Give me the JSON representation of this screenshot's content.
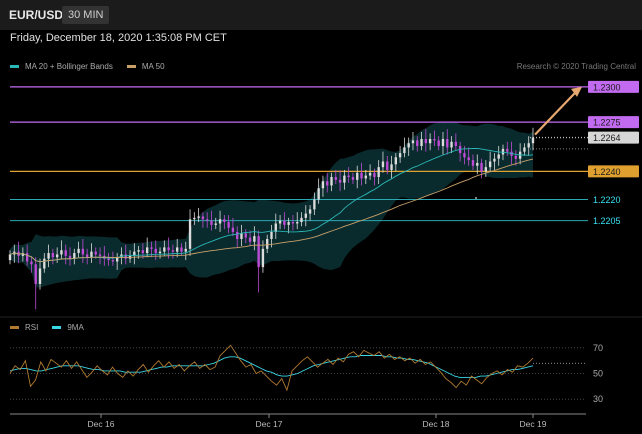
{
  "header": {
    "symbol": "EUR/USD",
    "timeframe": "30 MIN"
  },
  "date_text": "Friday, December 18, 2020 1:35:08 PM CET",
  "legend_main": {
    "item1": "MA 20 + Bollinger Bands",
    "item2": "MA 50",
    "color1": "#2ab7b7",
    "color2": "#c8a06a"
  },
  "legend_rsi": {
    "item1": "RSI",
    "item2": "9MA",
    "color1": "#b07a30",
    "color2": "#3ad7e7"
  },
  "credit": "Research © 2020 Trading Central",
  "colors": {
    "resistance": "#c36bf0",
    "pivot": "#e0a030",
    "support": "#2aa9b2",
    "candle_up": "#dcdcdc",
    "candle_down": "#c04cd8",
    "arrow": "#e6a870"
  },
  "chart_data": [
    {
      "type": "candlestick",
      "title": "EUR/USD 30 MIN",
      "x_tick_labels": [
        "Dec 16",
        "Dec 17",
        "Dec 18",
        "Dec 19"
      ],
      "ylim": [
        1.2138,
        1.2312
      ],
      "levels": [
        {
          "value": 1.23,
          "label": "1.2300",
          "kind": "resistance"
        },
        {
          "value": 1.2275,
          "label": "1.2275",
          "kind": "resistance"
        },
        {
          "value": 1.2264,
          "label": "1.2264",
          "kind": "last"
        },
        {
          "value": 1.224,
          "label": "1.2240",
          "kind": "pivot"
        },
        {
          "value": 1.222,
          "label": "1.2220",
          "kind": "support"
        },
        {
          "value": 1.2205,
          "label": "1.2205",
          "kind": "support"
        }
      ],
      "closes": [
        1.2181,
        1.2183,
        1.218,
        1.2182,
        1.2176,
        1.2174,
        1.216,
        1.2171,
        1.2178,
        1.2182,
        1.2179,
        1.2181,
        1.2184,
        1.218,
        1.2178,
        1.2182,
        1.2185,
        1.2181,
        1.2179,
        1.2183,
        1.2181,
        1.218,
        1.2178,
        1.2177,
        1.2176,
        1.2179,
        1.2181,
        1.2178,
        1.218,
        1.2183,
        1.2184,
        1.2182,
        1.2186,
        1.2185,
        1.2182,
        1.2183,
        1.2186,
        1.2184,
        1.2183,
        1.2186,
        1.2183,
        1.2185,
        1.2206,
        1.2207,
        1.2208,
        1.2206,
        1.2205,
        1.2202,
        1.2203,
        1.2206,
        1.2204,
        1.22,
        1.2197,
        1.2192,
        1.2196,
        1.2193,
        1.219,
        1.2194,
        1.2172,
        1.2185,
        1.2192,
        1.2197,
        1.2203,
        1.2205,
        1.2202,
        1.2204,
        1.2203,
        1.2204,
        1.2207,
        1.221,
        1.2213,
        1.222,
        1.2228,
        1.2233,
        1.223,
        1.2236,
        1.2234,
        1.2232,
        1.2237,
        1.2236,
        1.2234,
        1.2239,
        1.2235,
        1.2237,
        1.2239,
        1.2236,
        1.2243,
        1.2247,
        1.2241,
        1.2245,
        1.225,
        1.2253,
        1.2257,
        1.226,
        1.2262,
        1.2258,
        1.2263,
        1.226,
        1.2263,
        1.2262,
        1.2258,
        1.2263,
        1.2257,
        1.2261,
        1.2258,
        1.2253,
        1.225,
        1.2248,
        1.2244,
        1.2246,
        1.224,
        1.2243,
        1.2247,
        1.2249,
        1.2252,
        1.2256,
        1.2254,
        1.2251,
        1.2249,
        1.2254,
        1.2257,
        1.226,
        1.2264
      ],
      "series": [
        {
          "name": "MA 20 + Bollinger Bands",
          "style": "line + band"
        },
        {
          "name": "MA 50",
          "style": "line"
        }
      ]
    },
    {
      "type": "line",
      "title": "RSI",
      "ylim": [
        20,
        80
      ],
      "y_tick_labels": [
        "70",
        "50",
        "30"
      ],
      "series": [
        {
          "name": "RSI",
          "values": [
            50,
            56,
            53,
            60,
            40,
            45,
            59,
            52,
            61,
            58,
            55,
            60,
            54,
            59,
            53,
            47,
            51,
            56,
            52,
            49,
            55,
            50,
            47,
            52,
            48,
            53,
            57,
            51,
            56,
            60,
            55,
            59,
            54,
            57,
            52,
            56,
            59,
            54,
            57,
            53,
            55,
            64,
            68,
            72,
            66,
            60,
            55,
            57,
            50,
            52,
            48,
            44,
            41,
            46,
            37,
            52,
            56,
            60,
            63,
            59,
            55,
            58,
            61,
            57,
            62,
            59,
            65,
            67,
            63,
            68,
            66,
            64,
            67,
            62,
            65,
            61,
            63,
            60,
            62,
            58,
            61,
            57,
            59,
            55,
            51,
            46,
            43,
            39,
            44,
            41,
            48,
            45,
            42,
            47,
            50,
            52,
            49,
            53,
            51,
            56,
            55,
            58,
            62
          ]
        },
        {
          "name": "9MA",
          "values": [
            52,
            53,
            54,
            54,
            53,
            52,
            52,
            53,
            54,
            55,
            56,
            56,
            56,
            56,
            55,
            54,
            53,
            53,
            52,
            52,
            52,
            52,
            51,
            51,
            51,
            51,
            52,
            53,
            54,
            55,
            55,
            56,
            56,
            56,
            56,
            56,
            56,
            56,
            57,
            58,
            60,
            62,
            63,
            63,
            62,
            60,
            58,
            56,
            54,
            52,
            51,
            49,
            48,
            48,
            49,
            50,
            52,
            54,
            56,
            57,
            58,
            59,
            60,
            61,
            62,
            63,
            63,
            64,
            64,
            64,
            64,
            64,
            63,
            63,
            62,
            62,
            61,
            61,
            60,
            59,
            58,
            56,
            54,
            52,
            50,
            48,
            47,
            47,
            47,
            47,
            48,
            48,
            49,
            50,
            51,
            52,
            53,
            53,
            54,
            55,
            56
          ]
        }
      ]
    }
  ]
}
